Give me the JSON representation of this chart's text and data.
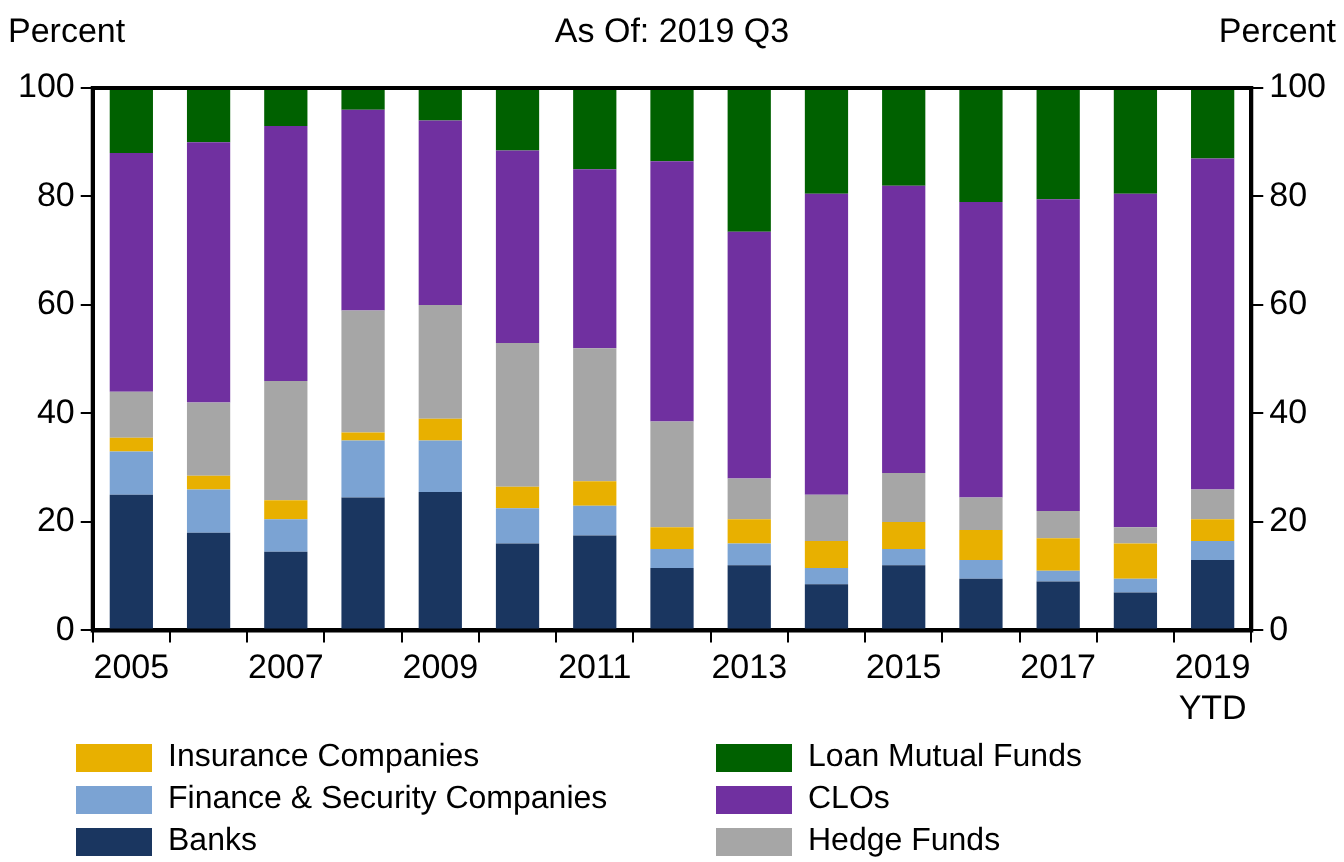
{
  "chart_data": {
    "type": "bar",
    "stacked": true,
    "title": "As Of: 2019 Q3",
    "ylabel": "Percent",
    "y2label": "Percent",
    "categories": [
      "2005",
      null,
      "2007",
      null,
      "2009",
      null,
      "2011",
      null,
      "2013",
      null,
      "2015",
      null,
      "2017",
      null,
      "2019 YTD"
    ],
    "series": [
      {
        "name": "Banks",
        "color": "#1a3660",
        "values": [
          25,
          18,
          14.5,
          24.5,
          25.5,
          16,
          17.5,
          11.5,
          12,
          8.5,
          12,
          9.5,
          9,
          7,
          13
        ]
      },
      {
        "name": "Finance & Security Companies",
        "color": "#7ba3d3",
        "values": [
          8,
          8,
          6,
          10.5,
          9.5,
          6.5,
          5.5,
          3.5,
          4,
          3,
          3,
          3.5,
          2,
          2.5,
          3.5
        ]
      },
      {
        "name": "Insurance Companies",
        "color": "#e8b000",
        "values": [
          2.5,
          2.5,
          3.5,
          1.5,
          4,
          4,
          4.5,
          4,
          4.5,
          5,
          5,
          5.5,
          6,
          6.5,
          4
        ]
      },
      {
        "name": "Hedge Funds",
        "color": "#a6a6a6",
        "values": [
          8.5,
          13.5,
          22,
          22.5,
          21,
          26.5,
          24.5,
          19.5,
          7.5,
          8.5,
          9,
          6,
          5,
          3,
          5.5
        ]
      },
      {
        "name": "CLOs",
        "color": "#7030a0",
        "values": [
          44,
          48,
          47,
          37,
          34,
          35.5,
          33,
          48,
          45.5,
          55.5,
          53,
          54.5,
          57.5,
          61.5,
          61
        ]
      },
      {
        "name": "Loan Mutual Funds",
        "color": "#006100",
        "values": [
          12,
          10,
          7,
          4,
          6,
          11.5,
          15,
          13.5,
          26.5,
          19.5,
          18,
          21,
          20.5,
          19.5,
          13
        ]
      }
    ],
    "ylim": [
      0,
      100
    ],
    "yticks": [
      0,
      20,
      40,
      60,
      80,
      100
    ],
    "y2lim": [
      0,
      100
    ],
    "y2ticks": [
      0,
      20,
      40,
      60,
      80,
      100
    ],
    "grid": false,
    "legend": "bottom"
  }
}
